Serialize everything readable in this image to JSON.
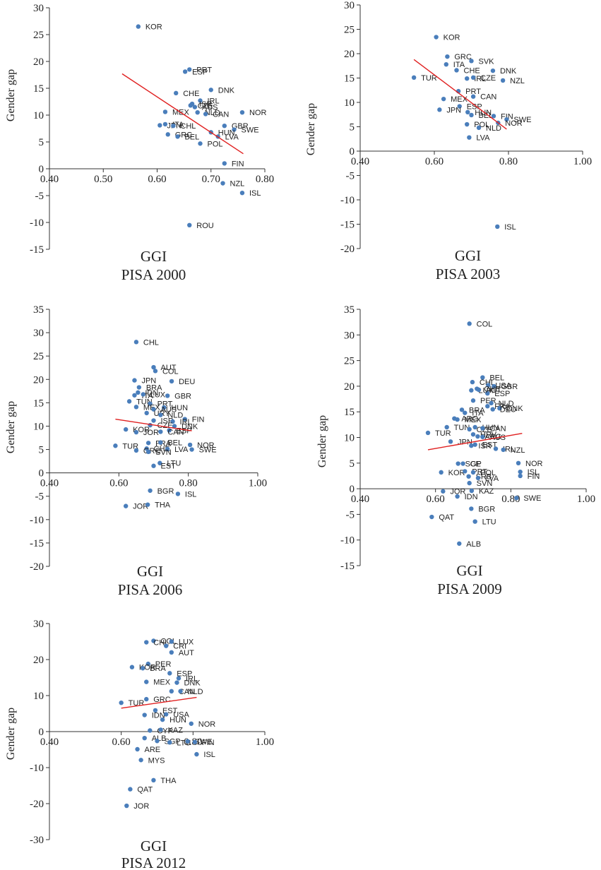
{
  "chart_data": [
    {
      "type": "scatter",
      "title": "PISA 2000",
      "xlabel": "GGI",
      "ylabel": "Gender gap",
      "xlim": [
        0.4,
        0.8
      ],
      "ylim": [
        -15,
        30
      ],
      "xticks": [
        "0.40",
        "0.50",
        "0.60",
        "0.70",
        "0.80"
      ],
      "yticks": [
        "30",
        "25",
        "20",
        "15",
        "10",
        "5",
        "0",
        "-5",
        "-10",
        "-15"
      ],
      "trend": {
        "x1": 0.535,
        "y1": 17.7,
        "x2": 0.76,
        "y2": 2.8
      },
      "points": [
        {
          "label": "KOR",
          "x": 0.565,
          "y": 26.5
        },
        {
          "label": "PRT",
          "x": 0.66,
          "y": 18.5
        },
        {
          "label": "ESP",
          "x": 0.652,
          "y": 18.1
        },
        {
          "label": "DNK",
          "x": 0.7,
          "y": 14.7
        },
        {
          "label": "CHE",
          "x": 0.635,
          "y": 14.1
        },
        {
          "label": "IRL",
          "x": 0.68,
          "y": 12.7
        },
        {
          "label": "ISR",
          "x": 0.665,
          "y": 12.1
        },
        {
          "label": "AUS",
          "x": 0.67,
          "y": 11.5
        },
        {
          "label": "CZE",
          "x": 0.662,
          "y": 11.8
        },
        {
          "label": "MEX",
          "x": 0.615,
          "y": 10.6
        },
        {
          "label": "NLD",
          "x": 0.675,
          "y": 10.5
        },
        {
          "label": "CAN",
          "x": 0.69,
          "y": 10.2
        },
        {
          "label": "NOR",
          "x": 0.758,
          "y": 10.5
        },
        {
          "label": "JPN",
          "x": 0.605,
          "y": 8.1
        },
        {
          "label": "ITA",
          "x": 0.615,
          "y": 8.3
        },
        {
          "label": "CHL",
          "x": 0.63,
          "y": 8.0
        },
        {
          "label": "GBR",
          "x": 0.725,
          "y": 8.0
        },
        {
          "label": "SWE",
          "x": 0.743,
          "y": 7.3
        },
        {
          "label": "HUN",
          "x": 0.7,
          "y": 6.8
        },
        {
          "label": "GRC",
          "x": 0.62,
          "y": 6.4
        },
        {
          "label": "BEL",
          "x": 0.638,
          "y": 6.0
        },
        {
          "label": "LVA",
          "x": 0.713,
          "y": 6.0
        },
        {
          "label": "POL",
          "x": 0.68,
          "y": 4.7
        },
        {
          "label": "FIN",
          "x": 0.725,
          "y": 1.0
        },
        {
          "label": "NZL",
          "x": 0.722,
          "y": -2.7
        },
        {
          "label": "ISL",
          "x": 0.758,
          "y": -4.5
        },
        {
          "label": "ROU",
          "x": 0.66,
          "y": -10.5
        }
      ]
    },
    {
      "type": "scatter",
      "title": "PISA 2003",
      "xlabel": "GGI",
      "ylabel": "Gender gap",
      "xlim": [
        0.4,
        1.0
      ],
      "ylim": [
        -20,
        30
      ],
      "xticks": [
        "0.40",
        "0.60",
        "0.80",
        "1.00"
      ],
      "yticks": [
        "30",
        "25",
        "20",
        "15",
        "10",
        "5",
        "0",
        "-5",
        "-10",
        "-15",
        "-20"
      ],
      "trend": {
        "x1": 0.545,
        "y1": 18.8,
        "x2": 0.795,
        "y2": 4.5
      },
      "points": [
        {
          "label": "KOR",
          "x": 0.605,
          "y": 23.4
        },
        {
          "label": "GRC",
          "x": 0.635,
          "y": 19.4
        },
        {
          "label": "ITA",
          "x": 0.632,
          "y": 17.8
        },
        {
          "label": "SVK",
          "x": 0.7,
          "y": 18.5
        },
        {
          "label": "CHE",
          "x": 0.66,
          "y": 16.6
        },
        {
          "label": "DNK",
          "x": 0.758,
          "y": 16.5
        },
        {
          "label": "TUR",
          "x": 0.545,
          "y": 15.1
        },
        {
          "label": "IRL",
          "x": 0.688,
          "y": 14.9
        },
        {
          "label": "CZE",
          "x": 0.705,
          "y": 15.1
        },
        {
          "label": "NZL",
          "x": 0.785,
          "y": 14.5
        },
        {
          "label": "PRT",
          "x": 0.665,
          "y": 12.3
        },
        {
          "label": "CAN",
          "x": 0.705,
          "y": 11.2
        },
        {
          "label": "MEX",
          "x": 0.625,
          "y": 10.7
        },
        {
          "label": "ESP",
          "x": 0.668,
          "y": 9.2
        },
        {
          "label": "JPN",
          "x": 0.614,
          "y": 8.5
        },
        {
          "label": "HUN",
          "x": 0.69,
          "y": 8.0
        },
        {
          "label": "BEL",
          "x": 0.7,
          "y": 7.4
        },
        {
          "label": "FIN",
          "x": 0.76,
          "y": 7.2
        },
        {
          "label": "SWE",
          "x": 0.795,
          "y": 6.5
        },
        {
          "label": "NOR",
          "x": 0.772,
          "y": 5.8
        },
        {
          "label": "POL",
          "x": 0.688,
          "y": 5.5
        },
        {
          "label": "NLD",
          "x": 0.72,
          "y": 4.8
        },
        {
          "label": "LVA",
          "x": 0.694,
          "y": 2.8
        },
        {
          "label": "ISL",
          "x": 0.77,
          "y": -15.5
        }
      ]
    },
    {
      "type": "scatter",
      "title": "PISA 2006",
      "xlabel": "GGI",
      "ylabel": "Gender gap",
      "xlim": [
        0.4,
        1.0
      ],
      "ylim": [
        -20,
        35
      ],
      "xticks": [
        "0.40",
        "0.60",
        "0.80",
        "1.00"
      ],
      "yticks": [
        "35",
        "30",
        "25",
        "20",
        "15",
        "10",
        "5",
        "0",
        "-5",
        "-10",
        "-15",
        "-20"
      ],
      "trend": {
        "x1": 0.59,
        "y1": 11.5,
        "x2": 0.81,
        "y2": 9.0
      },
      "points": [
        {
          "label": "CHL",
          "x": 0.65,
          "y": 28.0
        },
        {
          "label": "AUT",
          "x": 0.7,
          "y": 22.6
        },
        {
          "label": "COL",
          "x": 0.705,
          "y": 21.8
        },
        {
          "label": "JPN",
          "x": 0.645,
          "y": 19.8
        },
        {
          "label": "DEU",
          "x": 0.752,
          "y": 19.6
        },
        {
          "label": "BRA",
          "x": 0.658,
          "y": 18.3
        },
        {
          "label": "IDN",
          "x": 0.655,
          "y": 17.2
        },
        {
          "label": "ITA",
          "x": 0.645,
          "y": 16.6
        },
        {
          "label": "LUX",
          "x": 0.67,
          "y": 16.8
        },
        {
          "label": "GBR",
          "x": 0.74,
          "y": 16.5
        },
        {
          "label": "TUN",
          "x": 0.63,
          "y": 15.3
        },
        {
          "label": "PRT",
          "x": 0.69,
          "y": 14.8
        },
        {
          "label": "MEX",
          "x": 0.65,
          "y": 14.1
        },
        {
          "label": "HUN",
          "x": 0.73,
          "y": 14.0
        },
        {
          "label": "AUS",
          "x": 0.7,
          "y": 13.6
        },
        {
          "label": "URY",
          "x": 0.68,
          "y": 12.8
        },
        {
          "label": "NLD",
          "x": 0.72,
          "y": 12.4
        },
        {
          "label": "ISR",
          "x": 0.7,
          "y": 11.2
        },
        {
          "label": "FIN",
          "x": 0.79,
          "y": 11.5
        },
        {
          "label": "IRL",
          "x": 0.755,
          "y": 11.0
        },
        {
          "label": "CZE",
          "x": 0.69,
          "y": 10.2
        },
        {
          "label": "DNK",
          "x": 0.76,
          "y": 10.0
        },
        {
          "label": "KOR",
          "x": 0.62,
          "y": 9.3
        },
        {
          "label": "JOR",
          "x": 0.65,
          "y": 8.7
        },
        {
          "label": "ESP",
          "x": 0.745,
          "y": 9.1
        },
        {
          "label": "CAN",
          "x": 0.72,
          "y": 8.8
        },
        {
          "label": "FRA",
          "x": 0.685,
          "y": 6.4
        },
        {
          "label": "BEL",
          "x": 0.72,
          "y": 6.5
        },
        {
          "label": "TUR",
          "x": 0.59,
          "y": 5.8
        },
        {
          "label": "NOR",
          "x": 0.805,
          "y": 6.0
        },
        {
          "label": "CHE",
          "x": 0.68,
          "y": 5.2
        },
        {
          "label": "LVA",
          "x": 0.74,
          "y": 5.1
        },
        {
          "label": "GRC",
          "x": 0.65,
          "y": 4.8
        },
        {
          "label": "SVN",
          "x": 0.685,
          "y": 4.5
        },
        {
          "label": "SWE",
          "x": 0.81,
          "y": 5.0
        },
        {
          "label": "LTU",
          "x": 0.718,
          "y": 2.1
        },
        {
          "label": "EST",
          "x": 0.7,
          "y": 1.5
        },
        {
          "label": "BGR",
          "x": 0.69,
          "y": -3.8
        },
        {
          "label": "ISL",
          "x": 0.77,
          "y": -4.5
        },
        {
          "label": "JOR",
          "x": 0.62,
          "y": -7.1
        },
        {
          "label": "THA",
          "x": 0.683,
          "y": -6.8
        }
      ]
    },
    {
      "type": "scatter",
      "title": "PISA 2009",
      "xlabel": "GGI",
      "ylabel": "Gender gap",
      "xlim": [
        0.4,
        1.0
      ],
      "ylim": [
        -15,
        35
      ],
      "xticks": [
        "0.40",
        "0.60",
        "0.80",
        "1.00"
      ],
      "yticks": [
        "35",
        "30",
        "25",
        "20",
        "15",
        "10",
        "5",
        "0",
        "-5",
        "-10",
        "-15"
      ],
      "trend": {
        "x1": 0.58,
        "y1": 7.6,
        "x2": 0.83,
        "y2": 10.8
      },
      "points": [
        {
          "label": "COL",
          "x": 0.69,
          "y": 32.2
        },
        {
          "label": "BEL",
          "x": 0.725,
          "y": 21.7
        },
        {
          "label": "CHL",
          "x": 0.698,
          "y": 20.8
        },
        {
          "label": "USA",
          "x": 0.74,
          "y": 20.2
        },
        {
          "label": "GBR",
          "x": 0.755,
          "y": 20.0
        },
        {
          "label": "CHE",
          "x": 0.71,
          "y": 19.5
        },
        {
          "label": "LUX",
          "x": 0.695,
          "y": 19.2
        },
        {
          "label": "ESP",
          "x": 0.738,
          "y": 18.6
        },
        {
          "label": "AUT",
          "x": 0.715,
          "y": 19.3
        },
        {
          "label": "PER",
          "x": 0.7,
          "y": 17.2
        },
        {
          "label": "NLD",
          "x": 0.748,
          "y": 16.7
        },
        {
          "label": "FRA",
          "x": 0.738,
          "y": 16.1
        },
        {
          "label": "DNK",
          "x": 0.77,
          "y": 15.7
        },
        {
          "label": "DEU",
          "x": 0.752,
          "y": 15.5
        },
        {
          "label": "BRA",
          "x": 0.67,
          "y": 15.4
        },
        {
          "label": "ITA",
          "x": 0.678,
          "y": 14.8
        },
        {
          "label": "MEX",
          "x": 0.658,
          "y": 13.5
        },
        {
          "label": "ARG",
          "x": 0.65,
          "y": 13.7
        },
        {
          "label": "TUN",
          "x": 0.63,
          "y": 12.0
        },
        {
          "label": "HUN",
          "x": 0.705,
          "y": 12.0
        },
        {
          "label": "CZE",
          "x": 0.69,
          "y": 11.6
        },
        {
          "label": "CAN",
          "x": 0.725,
          "y": 11.8
        },
        {
          "label": "TUR",
          "x": 0.58,
          "y": 10.9
        },
        {
          "label": "HRV",
          "x": 0.7,
          "y": 10.6
        },
        {
          "label": "ARG",
          "x": 0.712,
          "y": 10.2
        },
        {
          "label": "AUS",
          "x": 0.725,
          "y": 10.1
        },
        {
          "label": "JPN",
          "x": 0.64,
          "y": 9.2
        },
        {
          "label": "ISR",
          "x": 0.695,
          "y": 8.4
        },
        {
          "label": "EST",
          "x": 0.705,
          "y": 8.6
        },
        {
          "label": "IRL",
          "x": 0.76,
          "y": 7.8
        },
        {
          "label": "NZL",
          "x": 0.78,
          "y": 7.6
        },
        {
          "label": "SGP",
          "x": 0.66,
          "y": 4.9
        },
        {
          "label": "CE",
          "x": 0.673,
          "y": 4.9
        },
        {
          "label": "NOR",
          "x": 0.82,
          "y": 5.0
        },
        {
          "label": "KOR",
          "x": 0.615,
          "y": 3.2
        },
        {
          "label": "PRT",
          "x": 0.678,
          "y": 3.4
        },
        {
          "label": "POL",
          "x": 0.7,
          "y": 3.2
        },
        {
          "label": "ISL",
          "x": 0.825,
          "y": 3.3
        },
        {
          "label": "SRB",
          "x": 0.688,
          "y": 2.4
        },
        {
          "label": "LVA",
          "x": 0.713,
          "y": 2.1
        },
        {
          "label": "FIN",
          "x": 0.825,
          "y": 2.5
        },
        {
          "label": "SVN",
          "x": 0.69,
          "y": 1.1
        },
        {
          "label": "JOR",
          "x": 0.62,
          "y": -0.5
        },
        {
          "label": "KAZ",
          "x": 0.696,
          "y": -0.4
        },
        {
          "label": "IDN",
          "x": 0.658,
          "y": -1.5
        },
        {
          "label": "SWE",
          "x": 0.815,
          "y": -1.8
        },
        {
          "label": "BGR",
          "x": 0.695,
          "y": -3.9
        },
        {
          "label": "QAT",
          "x": 0.59,
          "y": -5.5
        },
        {
          "label": "LTU",
          "x": 0.705,
          "y": -6.4
        },
        {
          "label": "ALB",
          "x": 0.663,
          "y": -10.7
        }
      ]
    },
    {
      "type": "scatter",
      "title": "PISA 2012",
      "xlabel": "GGI",
      "ylabel": "Gender gap",
      "xlim": [
        0.4,
        1.0
      ],
      "ylim": [
        -30,
        30
      ],
      "xticks": [
        "0.40",
        "0.60",
        "0.80",
        "1.00"
      ],
      "yticks": [
        "30",
        "20",
        "10",
        "0",
        "-10",
        "-20",
        "-30"
      ],
      "trend": {
        "x1": 0.6,
        "y1": 6.5,
        "x2": 0.81,
        "y2": 9.5
      },
      "points": [
        {
          "label": "COL",
          "x": 0.69,
          "y": 25.2
        },
        {
          "label": "CHL",
          "x": 0.67,
          "y": 24.8
        },
        {
          "label": "LUX",
          "x": 0.74,
          "y": 25.0
        },
        {
          "label": "CRI",
          "x": 0.725,
          "y": 23.8
        },
        {
          "label": "AUT",
          "x": 0.74,
          "y": 22.0
        },
        {
          "label": "PER",
          "x": 0.675,
          "y": 18.8
        },
        {
          "label": "KOR",
          "x": 0.63,
          "y": 17.9
        },
        {
          "label": "BRA",
          "x": 0.66,
          "y": 17.6
        },
        {
          "label": "ESP",
          "x": 0.735,
          "y": 16.2
        },
        {
          "label": "IRL",
          "x": 0.76,
          "y": 14.8
        },
        {
          "label": "DNK",
          "x": 0.755,
          "y": 13.6
        },
        {
          "label": "MEX",
          "x": 0.67,
          "y": 13.8
        },
        {
          "label": "CAN",
          "x": 0.74,
          "y": 11.2
        },
        {
          "label": "NLD",
          "x": 0.765,
          "y": 11.2
        },
        {
          "label": "GRC",
          "x": 0.67,
          "y": 9.0
        },
        {
          "label": "TUR",
          "x": 0.6,
          "y": 8.0
        },
        {
          "label": "EST",
          "x": 0.695,
          "y": 5.9
        },
        {
          "label": "IDN",
          "x": 0.665,
          "y": 4.6
        },
        {
          "label": "USA",
          "x": 0.725,
          "y": 4.8
        },
        {
          "label": "HUN",
          "x": 0.715,
          "y": 3.3
        },
        {
          "label": "NOR",
          "x": 0.795,
          "y": 2.2
        },
        {
          "label": "CYP",
          "x": 0.68,
          "y": 0.3
        },
        {
          "label": "KAZ",
          "x": 0.71,
          "y": 0.5
        },
        {
          "label": "ALB",
          "x": 0.665,
          "y": -1.8
        },
        {
          "label": "SGP",
          "x": 0.7,
          "y": -2.6
        },
        {
          "label": "LTU",
          "x": 0.735,
          "y": -3.0
        },
        {
          "label": "SWE",
          "x": 0.785,
          "y": -2.7
        },
        {
          "label": "FIN",
          "x": 0.805,
          "y": -2.9
        },
        {
          "label": "ARE",
          "x": 0.645,
          "y": -4.9
        },
        {
          "label": "ISL",
          "x": 0.81,
          "y": -6.3
        },
        {
          "label": "MYS",
          "x": 0.655,
          "y": -7.9
        },
        {
          "label": "THA",
          "x": 0.69,
          "y": -13.5
        },
        {
          "label": "QAT",
          "x": 0.625,
          "y": -16.0
        },
        {
          "label": "JOR",
          "x": 0.615,
          "y": -20.6
        }
      ]
    }
  ]
}
